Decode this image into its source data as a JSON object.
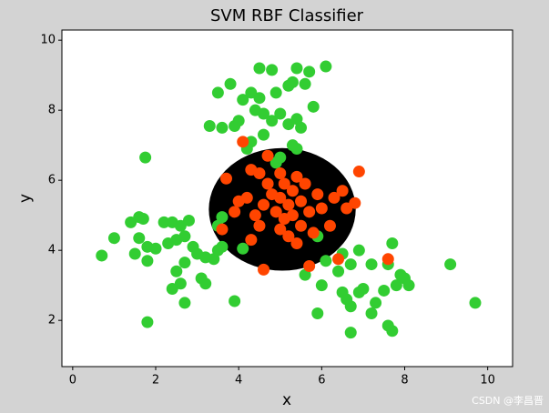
{
  "chart_data": {
    "type": "scatter",
    "title": "SVM RBF Classifier",
    "xlabel": "x",
    "ylabel": "y",
    "watermark": "CSDN @李昌晋",
    "xlim": [
      -0.26,
      10.6
    ],
    "ylim": [
      0.68,
      10.29
    ],
    "xticks": [
      0,
      2,
      4,
      6,
      8,
      10
    ],
    "yticks": [
      2,
      4,
      6,
      8,
      10
    ],
    "decision_region": {
      "center": [
        5.05,
        5.17
      ],
      "radii": [
        1.77,
        1.75
      ],
      "color": "#000000"
    },
    "series": [
      {
        "color": "#32cd32",
        "x": [
          4.5,
          4.8,
          5.4,
          5.7,
          6.1,
          3.8,
          3.5,
          4.1,
          4.3,
          4.5,
          4.9,
          5.2,
          5.3,
          5.6,
          4.4,
          4.6,
          4.8,
          5.0,
          5.2,
          5.4,
          5.5,
          5.8,
          3.9,
          4.0,
          4.3,
          4.6,
          5.3,
          5.4,
          4.2,
          4.9,
          5.0,
          3.3,
          3.6,
          0.7,
          1.0,
          1.4,
          1.6,
          1.7,
          1.6,
          1.8,
          1.5,
          1.8,
          2.0,
          2.2,
          2.4,
          2.6,
          2.8,
          2.3,
          2.5,
          2.7,
          2.9,
          2.5,
          2.7,
          3.0,
          3.2,
          3.4,
          3.5,
          3.6,
          3.1,
          3.2,
          2.4,
          2.6,
          2.7,
          1.8,
          3.9,
          1.75,
          3.5,
          3.6,
          5.6,
          6.0,
          6.1,
          6.4,
          6.5,
          6.7,
          6.9,
          7.2,
          7.6,
          7.7,
          6.5,
          6.6,
          6.7,
          6.9,
          7.0,
          7.2,
          7.3,
          7.5,
          7.8,
          7.9,
          8.1,
          8.0,
          7.6,
          7.7,
          6.7,
          5.9,
          9.1,
          9.7,
          4.1,
          5.9
        ],
        "y": [
          9.2,
          9.15,
          9.2,
          9.1,
          9.25,
          8.75,
          8.5,
          8.3,
          8.5,
          8.35,
          8.5,
          8.7,
          8.8,
          8.75,
          8.0,
          7.9,
          7.7,
          7.9,
          7.6,
          7.75,
          7.5,
          8.1,
          7.55,
          7.7,
          7.1,
          7.3,
          7.0,
          6.9,
          6.9,
          6.5,
          6.65,
          7.55,
          7.5,
          3.85,
          4.35,
          4.8,
          4.95,
          4.9,
          4.35,
          4.1,
          3.9,
          3.7,
          4.05,
          4.8,
          4.8,
          4.7,
          4.85,
          4.2,
          4.3,
          4.4,
          4.1,
          3.4,
          3.65,
          3.9,
          3.8,
          3.75,
          4.0,
          4.1,
          3.2,
          3.05,
          2.9,
          3.05,
          2.5,
          1.95,
          2.55,
          6.65,
          4.7,
          4.95,
          3.3,
          3.0,
          3.7,
          3.4,
          3.9,
          3.6,
          4.0,
          3.6,
          3.6,
          4.2,
          2.8,
          2.6,
          2.4,
          2.8,
          2.9,
          2.2,
          2.5,
          2.85,
          3.0,
          3.3,
          3.0,
          3.2,
          1.85,
          1.7,
          1.65,
          2.2,
          3.6,
          2.5,
          4.05,
          4.4
        ]
      },
      {
        "color": "#ff4500",
        "x": [
          4.1,
          6.9,
          4.6,
          6.4,
          7.6,
          3.7,
          3.6,
          4.0,
          4.2,
          4.3,
          4.5,
          4.7,
          4.4,
          4.5,
          4.6,
          4.7,
          4.8,
          4.9,
          5.0,
          5.0,
          5.1,
          5.1,
          5.2,
          5.2,
          5.3,
          5.3,
          5.4,
          5.4,
          5.5,
          5.5,
          5.6,
          5.7,
          5.8,
          5.9,
          6.0,
          6.2,
          6.3,
          6.5,
          6.6,
          6.8,
          5.7,
          4.3,
          3.9,
          5.0
        ],
        "y": [
          7.1,
          6.25,
          3.45,
          3.75,
          3.75,
          6.05,
          4.6,
          5.4,
          5.5,
          6.3,
          6.2,
          6.7,
          5.0,
          4.7,
          5.3,
          5.9,
          5.6,
          5.1,
          4.6,
          5.5,
          5.9,
          4.9,
          5.3,
          4.4,
          5.7,
          5.0,
          4.2,
          6.1,
          5.4,
          4.7,
          5.9,
          5.1,
          4.5,
          5.6,
          5.2,
          4.7,
          5.5,
          5.7,
          5.2,
          5.35,
          3.55,
          4.3,
          5.1,
          6.2
        ]
      }
    ]
  }
}
